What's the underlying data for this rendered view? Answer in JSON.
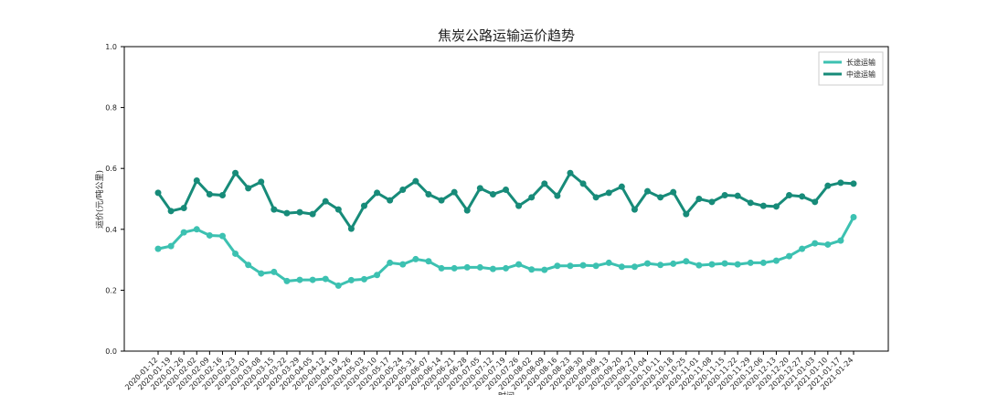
{
  "chart_data": {
    "type": "line",
    "title": "焦炭公路运输运价趋势",
    "xlabel": "时间",
    "ylabel": "运价(元/吨公里)",
    "categories": [
      "2020-01-12",
      "2020-01-19",
      "2020-01-26",
      "2020-02-02",
      "2020-02-09",
      "2020-02-16",
      "2020-02-23",
      "2020-03-01",
      "2020-03-08",
      "2020-03-15",
      "2020-03-22",
      "2020-03-29",
      "2020-04-05",
      "2020-04-12",
      "2020-04-19",
      "2020-04-26",
      "2020-05-03",
      "2020-05-10",
      "2020-05-17",
      "2020-05-24",
      "2020-05-31",
      "2020-06-07",
      "2020-06-14",
      "2020-06-21",
      "2020-06-28",
      "2020-07-05",
      "2020-07-12",
      "2020-07-19",
      "2020-07-26",
      "2020-08-02",
      "2020-08-09",
      "2020-08-16",
      "2020-08-23",
      "2020-08-30",
      "2020-09-06",
      "2020-09-13",
      "2020-09-20",
      "2020-09-27",
      "2020-10-04",
      "2020-10-11",
      "2020-10-18",
      "2020-10-25",
      "2020-11-01",
      "2020-11-08",
      "2020-11-15",
      "2020-11-22",
      "2020-11-29",
      "2020-12-06",
      "2020-12-13",
      "2020-12-20",
      "2020-12-27",
      "2021-01-03",
      "2021-01-10",
      "2021-01-17",
      "2021-01-24"
    ],
    "series": [
      {
        "name": "长途运输",
        "color": "#3cc1b1",
        "values": [
          0.336,
          0.345,
          0.39,
          0.4,
          0.38,
          0.378,
          0.32,
          0.283,
          0.255,
          0.26,
          0.23,
          0.234,
          0.234,
          0.237,
          0.215,
          0.233,
          0.236,
          0.25,
          0.29,
          0.285,
          0.302,
          0.295,
          0.272,
          0.272,
          0.275,
          0.275,
          0.27,
          0.272,
          0.285,
          0.268,
          0.267,
          0.28,
          0.28,
          0.282,
          0.28,
          0.29,
          0.277,
          0.277,
          0.288,
          0.283,
          0.287,
          0.295,
          0.282,
          0.285,
          0.288,
          0.285,
          0.29,
          0.29,
          0.297,
          0.312,
          0.336,
          0.354,
          0.35,
          0.363,
          0.44
        ]
      },
      {
        "name": "中途运输",
        "color": "#178b79",
        "values": [
          0.52,
          0.46,
          0.47,
          0.56,
          0.515,
          0.512,
          0.585,
          0.535,
          0.556,
          0.465,
          0.453,
          0.456,
          0.45,
          0.492,
          0.465,
          0.402,
          0.477,
          0.52,
          0.495,
          0.53,
          0.558,
          0.515,
          0.495,
          0.522,
          0.462,
          0.535,
          0.515,
          0.53,
          0.477,
          0.505,
          0.55,
          0.51,
          0.585,
          0.55,
          0.505,
          0.52,
          0.54,
          0.465,
          0.525,
          0.505,
          0.522,
          0.45,
          0.5,
          0.49,
          0.512,
          0.51,
          0.487,
          0.477,
          0.475,
          0.512,
          0.508,
          0.49,
          0.543,
          0.553,
          0.55
        ]
      }
    ],
    "ylim": [
      0,
      1
    ],
    "yticks": [
      {
        "value": 0,
        "label": "0.0"
      },
      {
        "value": 0.2,
        "label": "0.2"
      },
      {
        "value": 0.4,
        "label": "0.4"
      },
      {
        "value": 0.6,
        "label": "0.6"
      },
      {
        "value": 0.8,
        "label": "0.8"
      },
      {
        "value": 1,
        "label": "1.0"
      }
    ],
    "legend": "upper right"
  }
}
